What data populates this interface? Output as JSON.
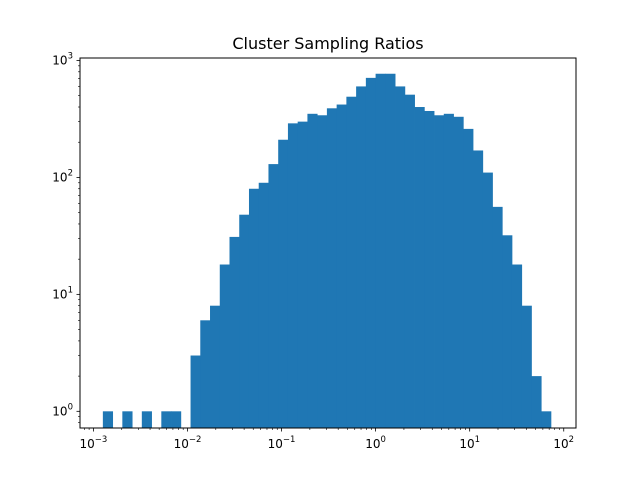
{
  "chart_data": {
    "type": "bar",
    "title": "Cluster Sampling Ratios",
    "xlabel": "",
    "ylabel": "",
    "xscale": "log",
    "yscale": "log",
    "xlim": [
      0.00072,
      135
    ],
    "ylim": [
      0.72,
      1050
    ],
    "grid": false,
    "legend": "none",
    "bar_color": "#1f77b4",
    "bin_edges": [
      0.00126,
      0.0016,
      0.00203,
      0.00258,
      0.00327,
      0.00415,
      0.00527,
      0.00669,
      0.00849,
      0.01078,
      0.01368,
      0.01736,
      0.02204,
      0.02797,
      0.0355,
      0.04506,
      0.05719,
      0.07259,
      0.09214,
      0.11695,
      0.14843,
      0.1884,
      0.23913,
      0.30351,
      0.38523,
      0.48895,
      0.6206,
      0.78769,
      0.99977,
      1.26895,
      1.61061,
      2.04426,
      2.59465,
      3.29324,
      4.17992,
      5.30533,
      6.73376,
      8.54679,
      10.84795,
      13.76868,
      17.47579,
      22.18102,
      28.15311,
      35.73316,
      45.35409,
      57.5654,
      73.06456
    ],
    "values": [
      1,
      0,
      1,
      0,
      1,
      0,
      1,
      1,
      0,
      3,
      6,
      8,
      18,
      31,
      48,
      80,
      90,
      130,
      210,
      290,
      300,
      350,
      340,
      390,
      420,
      490,
      600,
      710,
      770,
      770,
      600,
      510,
      400,
      370,
      340,
      350,
      330,
      260,
      170,
      110,
      56,
      32,
      18,
      8,
      2,
      1
    ]
  },
  "axes": {
    "x_ticks": [
      {
        "base": "10",
        "exp": "−3",
        "value": 0.001
      },
      {
        "base": "10",
        "exp": "−2",
        "value": 0.01
      },
      {
        "base": "10",
        "exp": "−1",
        "value": 0.1
      },
      {
        "base": "10",
        "exp": "0",
        "value": 1
      },
      {
        "base": "10",
        "exp": "1",
        "value": 10
      },
      {
        "base": "10",
        "exp": "2",
        "value": 100
      }
    ],
    "y_ticks": [
      {
        "base": "10",
        "exp": "0",
        "value": 1
      },
      {
        "base": "10",
        "exp": "1",
        "value": 10
      },
      {
        "base": "10",
        "exp": "2",
        "value": 100
      },
      {
        "base": "10",
        "exp": "3",
        "value": 1000
      }
    ]
  }
}
